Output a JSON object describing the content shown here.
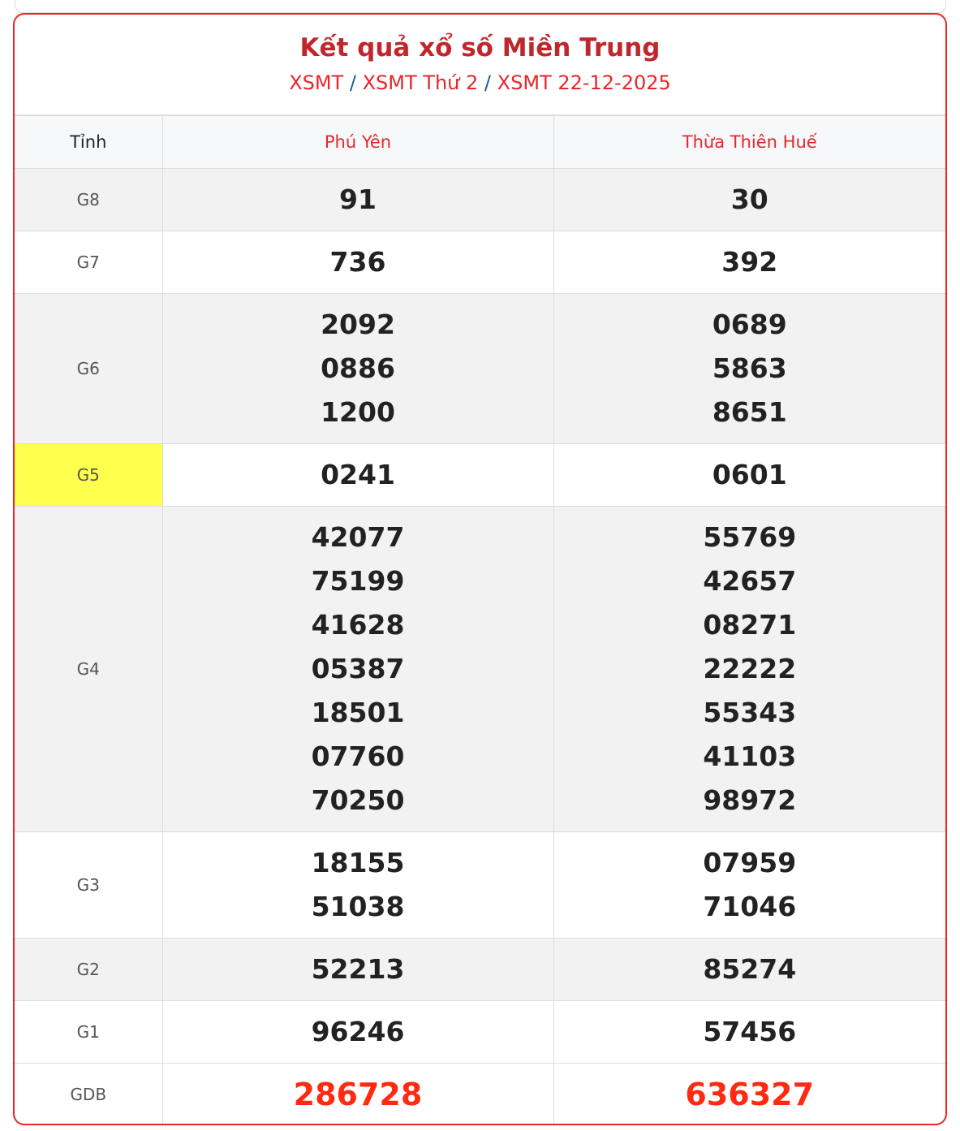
{
  "header": {
    "title": "Kết quả xổ số Miền Trung",
    "breadcrumb": [
      "XSMT",
      "XSMT Thứ 2",
      "XSMT 22-12-2025"
    ],
    "separator": "/"
  },
  "table": {
    "columns": [
      "Tỉnh",
      "Phú Yên",
      "Thừa Thiên Huế"
    ],
    "rows": [
      {
        "label": "G8",
        "a": [
          "91"
        ],
        "b": [
          "30"
        ]
      },
      {
        "label": "G7",
        "a": [
          "736"
        ],
        "b": [
          "392"
        ]
      },
      {
        "label": "G6",
        "a": [
          "2092",
          "0886",
          "1200"
        ],
        "b": [
          "0689",
          "5863",
          "8651"
        ]
      },
      {
        "label": "G5",
        "a": [
          "0241"
        ],
        "b": [
          "0601"
        ],
        "highlight": "#ffff4d"
      },
      {
        "label": "G4",
        "a": [
          "42077",
          "75199",
          "41628",
          "05387",
          "18501",
          "07760",
          "70250"
        ],
        "b": [
          "55769",
          "42657",
          "08271",
          "22222",
          "55343",
          "41103",
          "98972"
        ]
      },
      {
        "label": "G3",
        "a": [
          "18155",
          "51038"
        ],
        "b": [
          "07959",
          "71046"
        ]
      },
      {
        "label": "G2",
        "a": [
          "52213"
        ],
        "b": [
          "85274"
        ]
      },
      {
        "label": "G1",
        "a": [
          "96246"
        ],
        "b": [
          "57456"
        ]
      },
      {
        "label": "GDB",
        "a": [
          "286728"
        ],
        "b": [
          "636327"
        ],
        "color": "#ff2a10"
      }
    ]
  },
  "colors": {
    "border": "#e8262b",
    "title": "#c0272d",
    "special": "#ff2a10"
  }
}
